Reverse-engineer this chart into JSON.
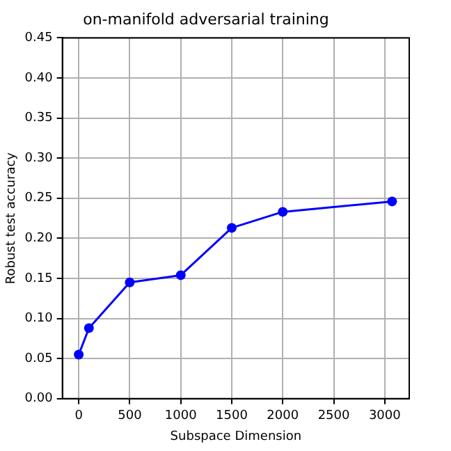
{
  "chart_data": {
    "type": "line",
    "title": "on-manifold adversarial training",
    "xlabel": "Subspace Dimension",
    "ylabel": "Robust test accuracy",
    "x": [
      0,
      100,
      500,
      1000,
      1500,
      2000,
      3072
    ],
    "series": [
      {
        "color": "#0000ff",
        "values": [
          0.055,
          0.088,
          0.145,
          0.154,
          0.213,
          0.233,
          0.246
        ]
      }
    ],
    "xlim": [
      -160,
      3240
    ],
    "xticks": [
      0,
      500,
      1000,
      1500,
      2000,
      2500,
      3000
    ],
    "ylim": [
      0,
      0.45
    ],
    "yticks": [
      {
        "value": 0,
        "label": "0.00"
      },
      0.05,
      {
        "value": 0.1,
        "label": "0.10"
      },
      0.15,
      {
        "value": 0.2,
        "label": "0.20"
      },
      0.25,
      {
        "value": 0.3,
        "label": "0.30"
      },
      0.35,
      {
        "value": 0.4,
        "label": "0.40"
      },
      0.45
    ],
    "grid": true,
    "marker": "circle",
    "line_style": "solid",
    "legend": false
  }
}
